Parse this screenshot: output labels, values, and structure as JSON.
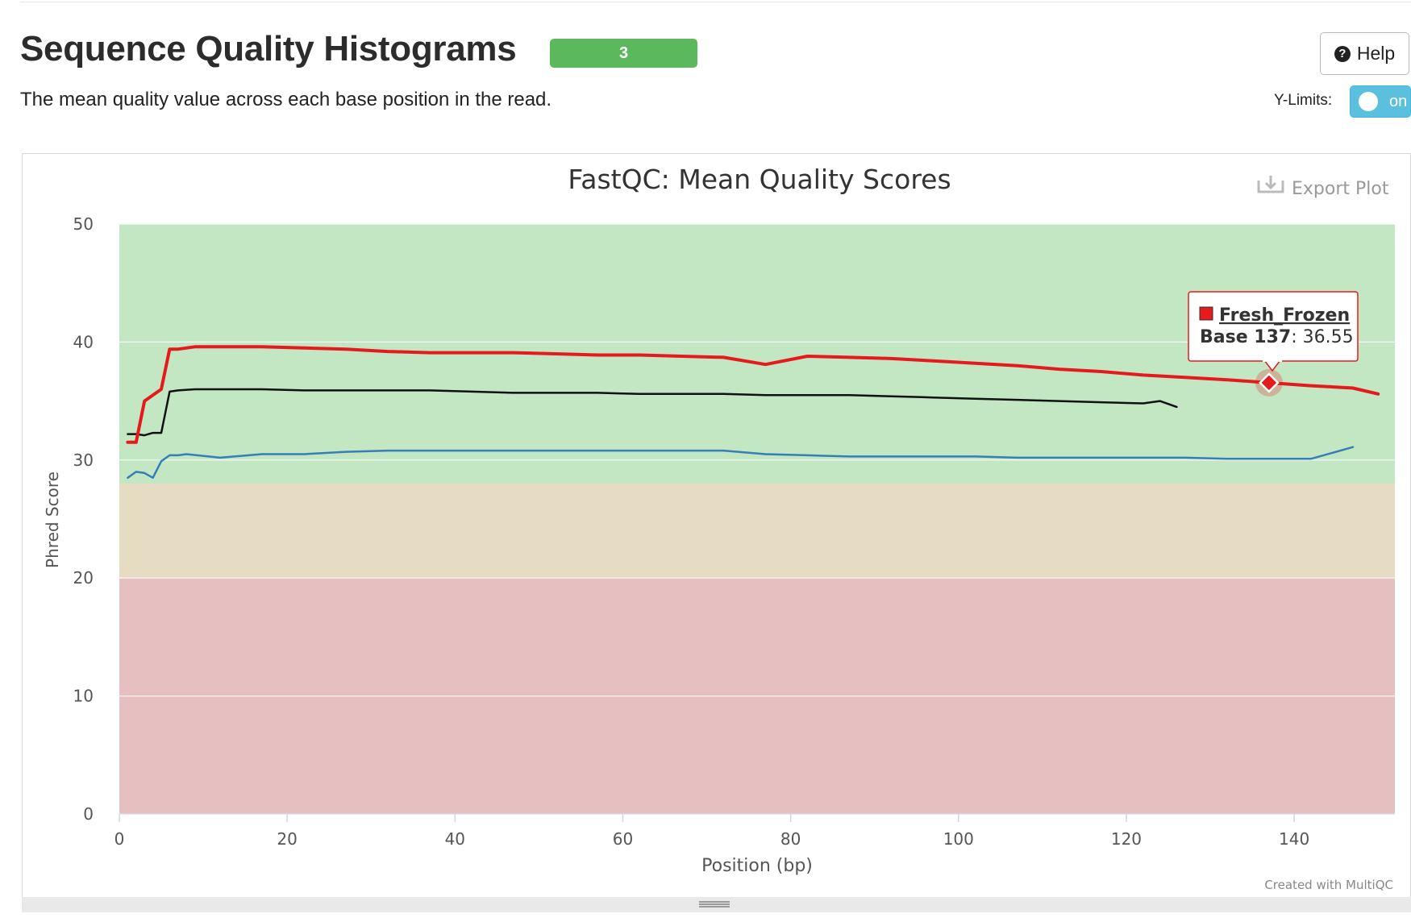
{
  "header": {
    "title": "Sequence Quality Histograms",
    "badge": "3",
    "description": "The mean quality value across each base position in the read.",
    "help_label": "Help",
    "ylimits_label": "Y-Limits:",
    "ylimits_value": "on"
  },
  "plot": {
    "export_label": "Export Plot",
    "credit": "Created with MultiQC",
    "tooltip": {
      "series": "Fresh_Frozen",
      "label": "Base 137",
      "value": "36.55"
    }
  },
  "icons": [
    "help-icon",
    "export-icon",
    "resize-handle-icon"
  ],
  "colors": {
    "badge": "#5cb85c",
    "toggle": "#5bc0de",
    "band_good": "#c3e6c3",
    "band_warn": "#e6dcc3",
    "band_fail": "#e6c0c0"
  },
  "chart_data": {
    "type": "line",
    "title": "FastQC: Mean Quality Scores",
    "xlabel": "Position (bp)",
    "ylabel": "Phred Score",
    "xlim": [
      0,
      152
    ],
    "ylim": [
      0,
      50
    ],
    "xticks": [
      0,
      20,
      40,
      60,
      80,
      100,
      120,
      140
    ],
    "yticks": [
      0,
      10,
      20,
      30,
      40,
      50
    ],
    "bands": [
      {
        "from": 28,
        "to": 50,
        "color": "#c3e6c3"
      },
      {
        "from": 20,
        "to": 28,
        "color": "#e6dcc3"
      },
      {
        "from": 0,
        "to": 20,
        "color": "#e6c0c0"
      }
    ],
    "series": [
      {
        "name": "Fresh_Frozen",
        "color": "#e41a1c",
        "width": 4,
        "points": [
          [
            1,
            31.5
          ],
          [
            2,
            31.5
          ],
          [
            3,
            35
          ],
          [
            4,
            35.5
          ],
          [
            5,
            36
          ],
          [
            6,
            39.4
          ],
          [
            7,
            39.4
          ],
          [
            9,
            39.6
          ],
          [
            12,
            39.6
          ],
          [
            17,
            39.6
          ],
          [
            22,
            39.5
          ],
          [
            27,
            39.4
          ],
          [
            32,
            39.2
          ],
          [
            37,
            39.1
          ],
          [
            42,
            39.1
          ],
          [
            47,
            39.1
          ],
          [
            52,
            39.0
          ],
          [
            57,
            38.9
          ],
          [
            62,
            38.9
          ],
          [
            67,
            38.8
          ],
          [
            72,
            38.7
          ],
          [
            77,
            38.1
          ],
          [
            82,
            38.8
          ],
          [
            87,
            38.7
          ],
          [
            92,
            38.6
          ],
          [
            97,
            38.4
          ],
          [
            102,
            38.2
          ],
          [
            107,
            38.0
          ],
          [
            112,
            37.7
          ],
          [
            117,
            37.5
          ],
          [
            122,
            37.2
          ],
          [
            127,
            37.0
          ],
          [
            132,
            36.8
          ],
          [
            137,
            36.55
          ],
          [
            142,
            36.3
          ],
          [
            147,
            36.1
          ],
          [
            150,
            35.6
          ]
        ]
      },
      {
        "name": "",
        "color": "#111111",
        "width": 2.5,
        "points": [
          [
            1,
            32.2
          ],
          [
            2,
            32.2
          ],
          [
            3,
            32.1
          ],
          [
            4,
            32.3
          ],
          [
            5,
            32.3
          ],
          [
            6,
            35.8
          ],
          [
            7,
            35.9
          ],
          [
            9,
            36.0
          ],
          [
            12,
            36.0
          ],
          [
            17,
            36.0
          ],
          [
            22,
            35.9
          ],
          [
            27,
            35.9
          ],
          [
            32,
            35.9
          ],
          [
            37,
            35.9
          ],
          [
            42,
            35.8
          ],
          [
            47,
            35.7
          ],
          [
            52,
            35.7
          ],
          [
            57,
            35.7
          ],
          [
            62,
            35.6
          ],
          [
            67,
            35.6
          ],
          [
            72,
            35.6
          ],
          [
            77,
            35.5
          ],
          [
            82,
            35.5
          ],
          [
            87,
            35.5
          ],
          [
            92,
            35.4
          ],
          [
            97,
            35.3
          ],
          [
            102,
            35.2
          ],
          [
            107,
            35.1
          ],
          [
            112,
            35.0
          ],
          [
            117,
            34.9
          ],
          [
            122,
            34.8
          ],
          [
            124,
            35.0
          ],
          [
            126,
            34.5
          ]
        ]
      },
      {
        "name": "",
        "color": "#377eb8",
        "width": 2.5,
        "points": [
          [
            1,
            28.5
          ],
          [
            2,
            29.0
          ],
          [
            3,
            28.9
          ],
          [
            4,
            28.5
          ],
          [
            5,
            29.9
          ],
          [
            6,
            30.4
          ],
          [
            7,
            30.4
          ],
          [
            8,
            30.5
          ],
          [
            12,
            30.2
          ],
          [
            17,
            30.5
          ],
          [
            22,
            30.5
          ],
          [
            27,
            30.7
          ],
          [
            32,
            30.8
          ],
          [
            37,
            30.8
          ],
          [
            42,
            30.8
          ],
          [
            47,
            30.8
          ],
          [
            52,
            30.8
          ],
          [
            57,
            30.8
          ],
          [
            62,
            30.8
          ],
          [
            67,
            30.8
          ],
          [
            72,
            30.8
          ],
          [
            77,
            30.5
          ],
          [
            82,
            30.4
          ],
          [
            87,
            30.3
          ],
          [
            92,
            30.3
          ],
          [
            97,
            30.3
          ],
          [
            102,
            30.3
          ],
          [
            107,
            30.2
          ],
          [
            112,
            30.2
          ],
          [
            117,
            30.2
          ],
          [
            122,
            30.2
          ],
          [
            127,
            30.2
          ],
          [
            132,
            30.1
          ],
          [
            137,
            30.1
          ],
          [
            142,
            30.1
          ],
          [
            147,
            31.1
          ]
        ]
      }
    ],
    "highlight": {
      "series": "Fresh_Frozen",
      "x": 137,
      "y": 36.55
    }
  }
}
